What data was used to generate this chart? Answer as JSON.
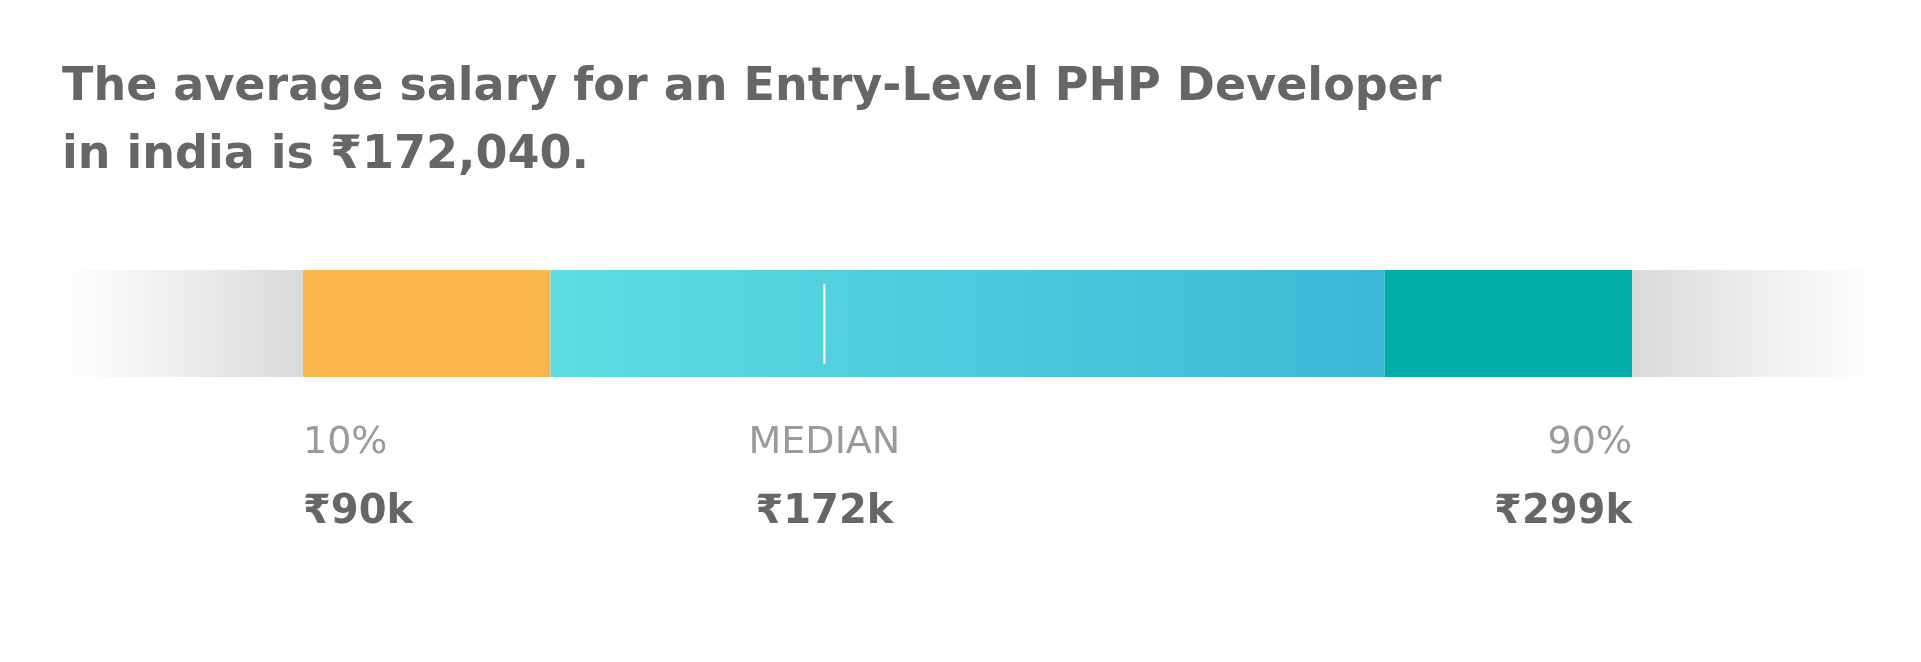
{
  "chart_data": {
    "type": "other",
    "title": "The average salary for an Entry-Level PHP Developer in india is ₹172,040.",
    "categories": [
      "10%",
      "MEDIAN",
      "90%"
    ],
    "values": [
      90,
      172,
      299
    ],
    "value_labels": [
      "₹90k",
      "₹172k",
      "₹299k"
    ],
    "colors": [
      "#fbb64f",
      "#4fd3df",
      "#00ada8"
    ]
  }
}
